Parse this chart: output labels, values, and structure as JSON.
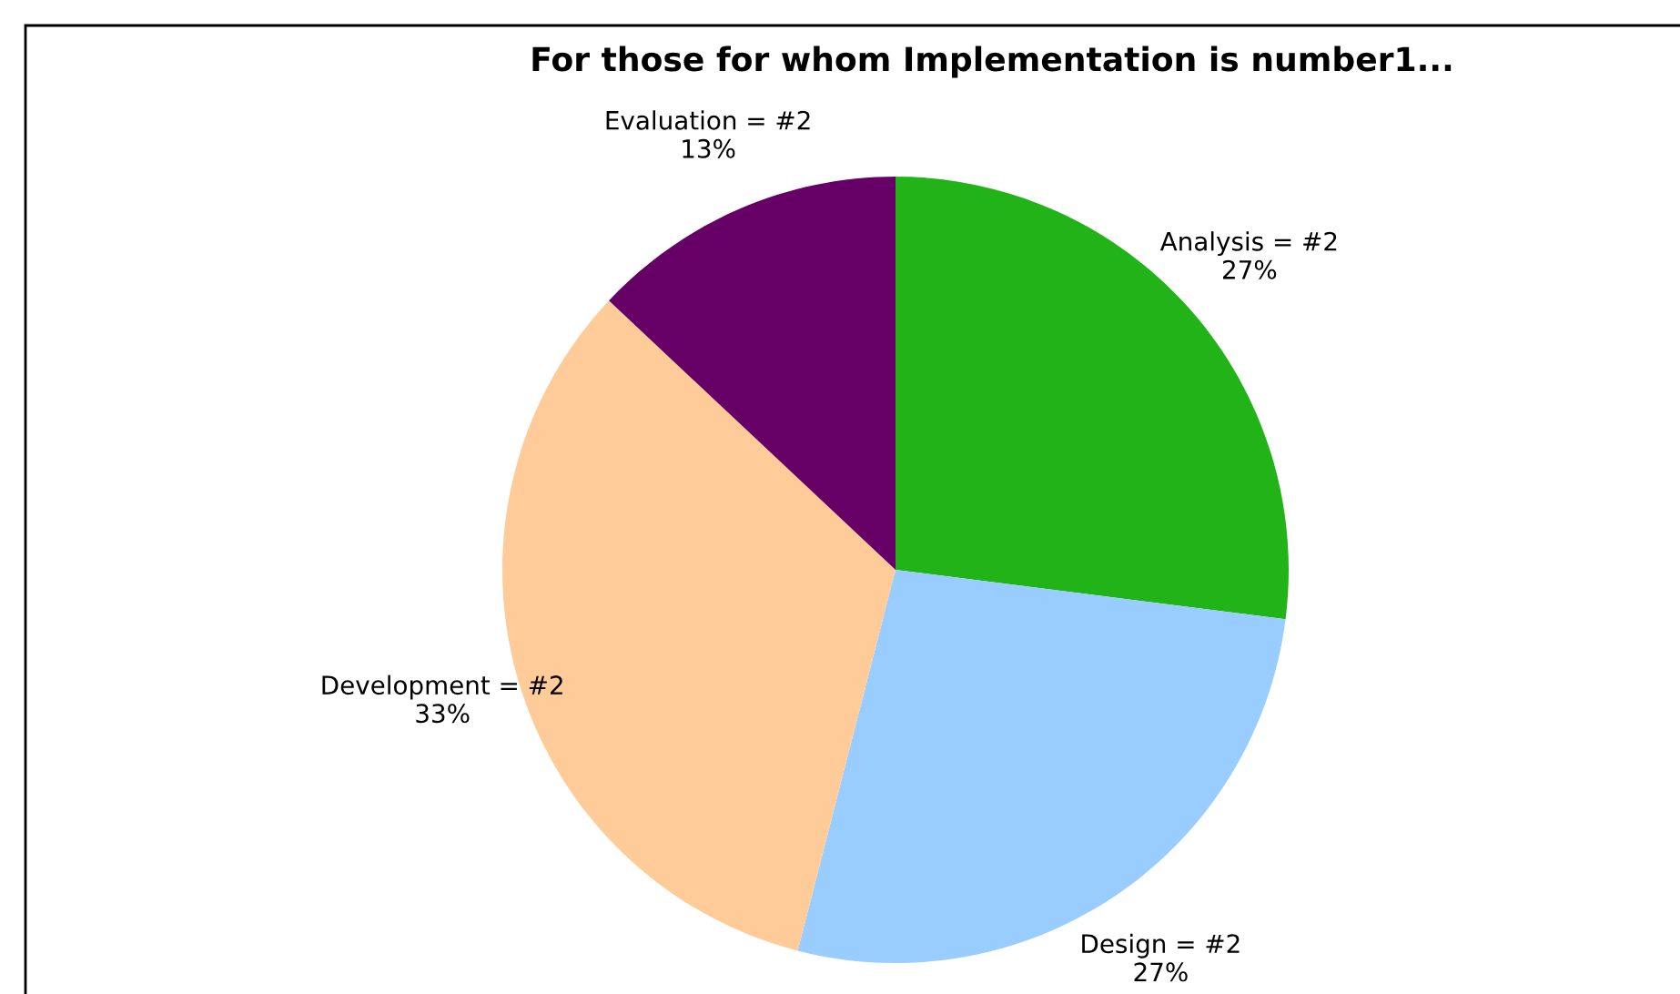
{
  "chart_data": {
    "type": "pie",
    "title": "For those for whom Implementation is number1...",
    "categories": [
      "Analysis = #2",
      "Design = #2",
      "Development = #2",
      "Evaluation = #2"
    ],
    "values": [
      27,
      27,
      33,
      13
    ],
    "colors": [
      "#21b318",
      "#99ccff",
      "#ffcc99",
      "#660066"
    ],
    "value_labels": [
      "27%",
      "27%",
      "33%",
      "13%"
    ]
  }
}
